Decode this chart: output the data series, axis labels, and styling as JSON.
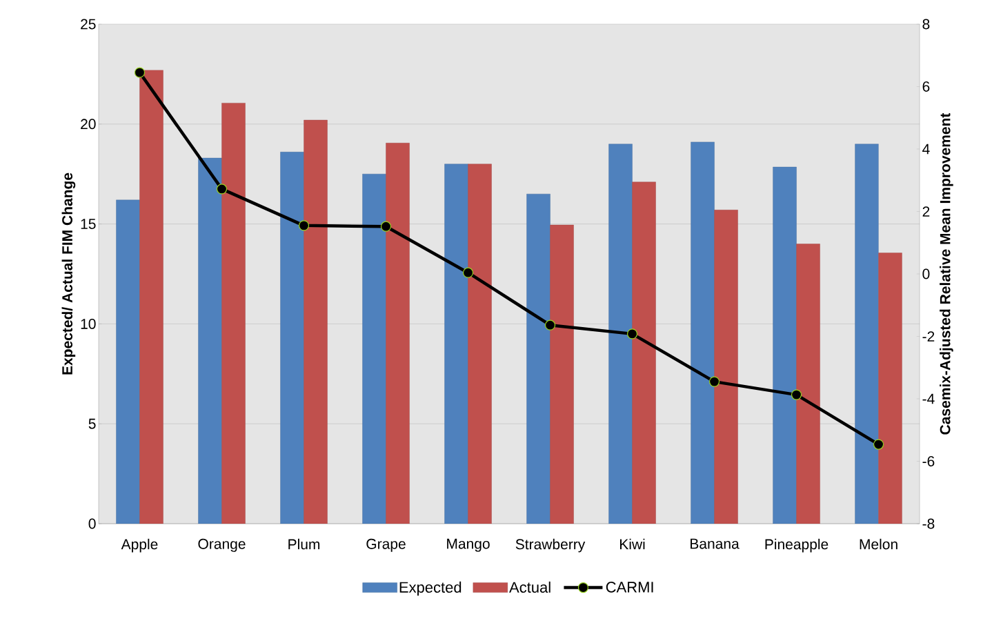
{
  "chart_data": {
    "type": "bar",
    "ylabel": "Expected/ Actual FIM Change",
    "y2label": "Casemix-Adjusted Relative Mean Improvement",
    "categories": [
      "Apple",
      "Orange",
      "Plum",
      "Grape",
      "Mango",
      "Strawberry",
      "Kiwi",
      "Banana",
      "Pineapple",
      "Melon"
    ],
    "series": [
      {
        "name": "Expected",
        "color": "#4f81bd",
        "values": [
          16.2,
          18.3,
          18.6,
          17.5,
          18.0,
          16.5,
          19.0,
          19.1,
          17.85,
          19.0
        ]
      },
      {
        "name": "Actual",
        "color": "#c0504d",
        "values": [
          22.7,
          21.05,
          20.2,
          19.05,
          18.0,
          14.95,
          17.1,
          15.7,
          14.0,
          13.55
        ]
      },
      {
        "name": "CARMI",
        "type": "line",
        "axis": "y2",
        "color": "#000000",
        "marker": "circle",
        "values": [
          6.45,
          2.72,
          1.55,
          1.52,
          0.04,
          -1.64,
          -1.92,
          -3.45,
          -3.87,
          -5.46
        ]
      }
    ],
    "ylim": [
      0,
      25
    ],
    "yticks": [
      0,
      5,
      10,
      15,
      20,
      25
    ],
    "y2lim": [
      -8,
      8
    ],
    "y2ticks": [
      -8,
      -6,
      -4,
      -2,
      0,
      2,
      4,
      6,
      8
    ],
    "grid": "y",
    "legend": "bottom"
  }
}
